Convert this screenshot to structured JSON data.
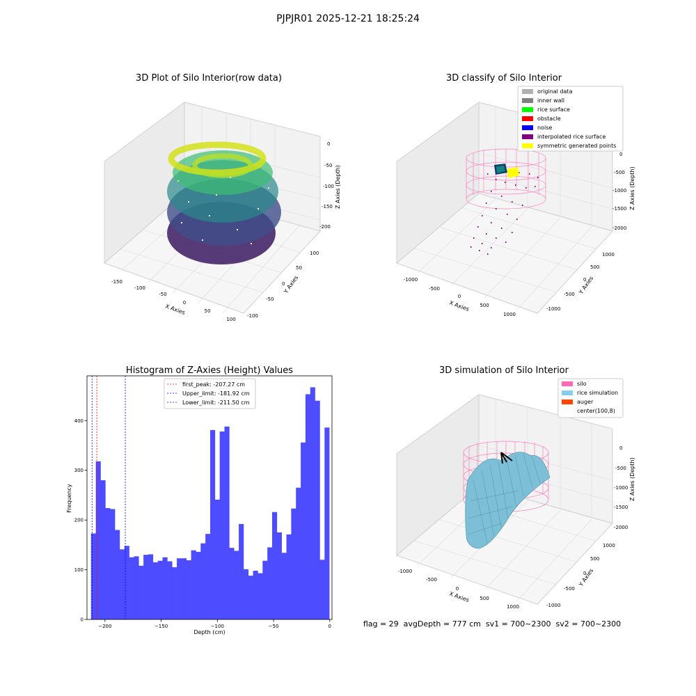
{
  "suptitle": "PJPJR01 2025-12-21 18:25:24",
  "footer": "flag = 29  avgDepth = 777 cm  sv1 = 700~2300  sv2 = 700~2300",
  "colors": {
    "original": "#b0b0b0",
    "inner_wall": "#808080",
    "rice_surface": "#00ff00",
    "obstacle": "#ff0000",
    "noise": "#0000ff",
    "interpolated": "#800080",
    "symmetric": "#ffff00",
    "silo": "#ff69b4",
    "rice_sim": "#87ceeb",
    "auger": "#ff4500",
    "hist_bar": "#4d4dff",
    "first_peak": "#ff0000",
    "limits": "#0000ff"
  },
  "panel1": {
    "title": "3D Plot of Silo Interior(row data)",
    "xlabel": "X Axies",
    "ylabel": "Y Axies",
    "zlabel": "Z Axies (Depth)",
    "xticks": [
      "-150",
      "-100",
      "-50",
      "0",
      "50",
      "100"
    ],
    "yticks": [
      "-100",
      "-50",
      "0",
      "50",
      "100"
    ],
    "zticks": [
      "0",
      "-50",
      "-100",
      "-150",
      "-200"
    ],
    "colormap": "viridis"
  },
  "panel2": {
    "title": "3D classify of Silo Interior",
    "xlabel": "X Axies",
    "ylabel": "Y Axies",
    "zlabel": "Z Axies (Depth)",
    "xticks": [
      "-1000",
      "-500",
      "0",
      "500",
      "1000"
    ],
    "yticks": [
      "-1000",
      "-500",
      "0",
      "500",
      "1000"
    ],
    "zticks": [
      "0",
      "-500",
      "-1000",
      "-1500",
      "-2000"
    ],
    "legend": [
      "original data",
      "inner wall",
      "rice surface",
      "obstacle",
      "noise",
      "interpolated rice surface",
      "symmetric generated points"
    ]
  },
  "panel4": {
    "title": "3D simulation of Silo Interior",
    "xlabel": "X Axies",
    "ylabel": "Y Axies",
    "zlabel": "Z Axies (Depth)",
    "xticks": [
      "-1000",
      "-500",
      "0",
      "500",
      "1000"
    ],
    "yticks": [
      "-1000",
      "-500",
      "0",
      "500",
      "1000"
    ],
    "zticks": [
      "0",
      "-500",
      "-1000",
      "-1500",
      "-2000"
    ],
    "legend": [
      "silo",
      "rice simulation",
      "auger",
      "center(100,8)"
    ]
  },
  "chart_data": {
    "type": "bar",
    "title": "Histogram of Z-Axies (Height) Values",
    "xlabel": "Depth (cm)",
    "ylabel": "Frequency",
    "xlim": [
      -216,
      2
    ],
    "ylim": [
      0,
      490
    ],
    "xticks": [
      -200,
      -150,
      -100,
      -50,
      0
    ],
    "xtick_labels": [
      "−200",
      "−150",
      "−100",
      "−50",
      "0"
    ],
    "yticks": [
      0,
      100,
      200,
      300,
      400
    ],
    "bin_start": -212.4,
    "bin_width": 4.24,
    "values": [
      173,
      318,
      280,
      224,
      222,
      180,
      141,
      148,
      125,
      127,
      108,
      130,
      131,
      115,
      118,
      125,
      117,
      105,
      123,
      123,
      119,
      139,
      136,
      153,
      172,
      381,
      241,
      378,
      388,
      144,
      138,
      192,
      101,
      88,
      98,
      93,
      118,
      145,
      216,
      175,
      134,
      171,
      223,
      265,
      356,
      453,
      467,
      440,
      120,
      386
    ],
    "vlines": [
      {
        "label": "first_peak: -207.27 cm",
        "x": -207.27,
        "color": "#ff0000"
      },
      {
        "label": "Upper_limit: -181.92 cm",
        "x": -181.92,
        "color": "#0000ff"
      },
      {
        "label": "Lower_limit: -211.50 cm",
        "x": -211.5,
        "color": "#0000ff"
      }
    ]
  }
}
